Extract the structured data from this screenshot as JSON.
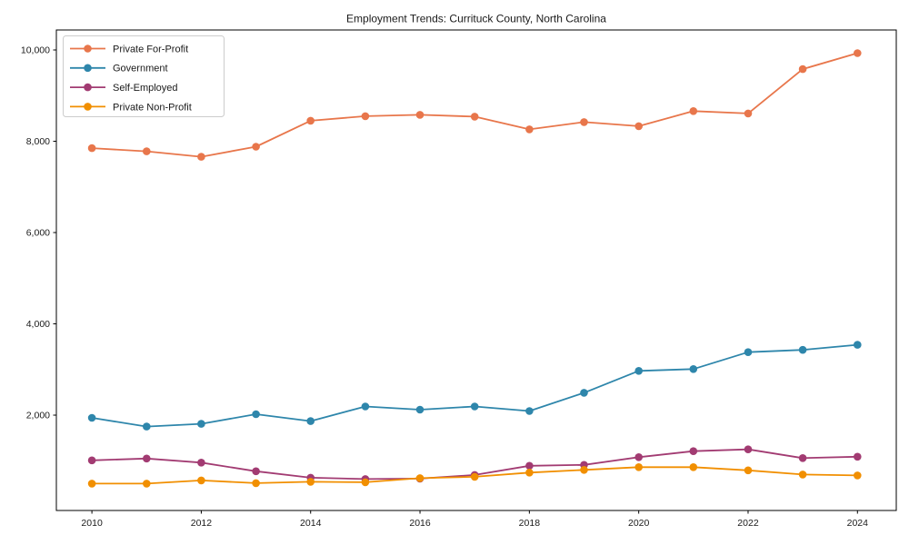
{
  "chart_data": {
    "type": "line",
    "title": "Employment Trends: Currituck County, North Carolina",
    "xlabel": "",
    "ylabel": "",
    "x": [
      2010,
      2011,
      2012,
      2013,
      2014,
      2015,
      2016,
      2017,
      2018,
      2019,
      2020,
      2021,
      2022,
      2023,
      2024
    ],
    "x_tick_labels": [
      "2010",
      "2012",
      "2014",
      "2016",
      "2018",
      "2020",
      "2022",
      "2024"
    ],
    "x_tick_values": [
      2010,
      2012,
      2014,
      2016,
      2018,
      2020,
      2022,
      2024
    ],
    "y_tick_values": [
      2000,
      4000,
      6000,
      8000,
      10000
    ],
    "y_tick_labels": [
      "2,000",
      "4,000",
      "6,000",
      "8,000",
      "10,000"
    ],
    "xlim": [
      2009.35,
      2024.71
    ],
    "ylim": [
      -89,
      10438
    ],
    "grid": false,
    "legend_position": "upper left",
    "series": [
      {
        "name": "Private For-Profit",
        "slug": "private-for-profit",
        "color": "#E8764B",
        "values": [
          7850,
          7780,
          7660,
          7880,
          8450,
          8550,
          8580,
          8540,
          8260,
          8420,
          8330,
          8660,
          8610,
          9580,
          9930
        ]
      },
      {
        "name": "Government",
        "slug": "government",
        "color": "#2E86AB",
        "values": [
          1940,
          1750,
          1810,
          2020,
          1870,
          2190,
          2120,
          2190,
          2090,
          2490,
          2970,
          3010,
          3380,
          3430,
          3540
        ]
      },
      {
        "name": "Self-Employed",
        "slug": "self-employed",
        "color": "#A23B72",
        "values": [
          1010,
          1050,
          960,
          770,
          630,
          600,
          610,
          690,
          890,
          910,
          1080,
          1210,
          1250,
          1060,
          1090
        ]
      },
      {
        "name": "Private Non-Profit",
        "slug": "private-non-profit",
        "color": "#F18F01",
        "values": [
          500,
          500,
          570,
          510,
          540,
          530,
          620,
          650,
          740,
          800,
          860,
          860,
          790,
          700,
          680
        ]
      }
    ],
    "colors": {
      "spine": "#000000",
      "text": "#1a1a1a",
      "legend_border": "#cccccc",
      "background": "#ffffff"
    }
  }
}
